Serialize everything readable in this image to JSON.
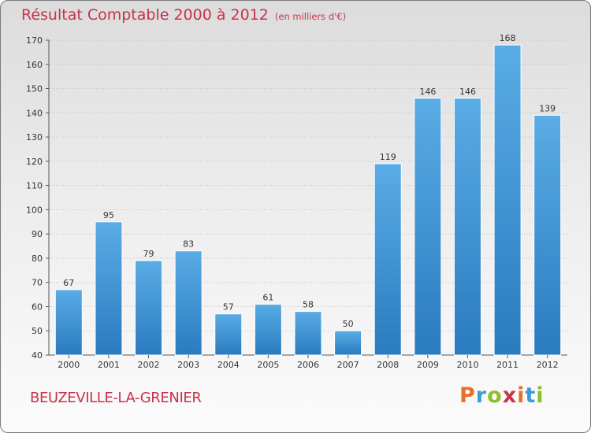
{
  "title": "Résultat Comptable 2000 à 2012",
  "unit": "(en milliers d'€)",
  "footer": {
    "commune": "BEUZEVILLE-LA-GRENIER",
    "logo": {
      "text": "Proxiti",
      "colors": [
        "#e8702a",
        "#3a9bd8",
        "#8bbf2a",
        "#c8324a",
        "#e8702a",
        "#3a9bd8",
        "#8bbf2a"
      ]
    }
  },
  "colors": {
    "bar_light": "#5aace6",
    "bar_dark": "#2a7bbf",
    "title": "#c8324a",
    "grid": "#c4c4c4"
  },
  "chart_data": {
    "type": "bar",
    "title": "Résultat Comptable 2000 à 2012",
    "xlabel": "",
    "ylabel": "",
    "categories": [
      "2000",
      "2001",
      "2002",
      "2003",
      "2004",
      "2005",
      "2006",
      "2007",
      "2008",
      "2009",
      "2010",
      "2011",
      "2012"
    ],
    "values": [
      67,
      95,
      79,
      83,
      57,
      61,
      58,
      50,
      119,
      146,
      146,
      168,
      139
    ],
    "ylim": [
      40,
      170
    ],
    "yticks": [
      40,
      50,
      60,
      70,
      80,
      90,
      100,
      110,
      120,
      130,
      140,
      150,
      160,
      170
    ],
    "grid": true
  }
}
